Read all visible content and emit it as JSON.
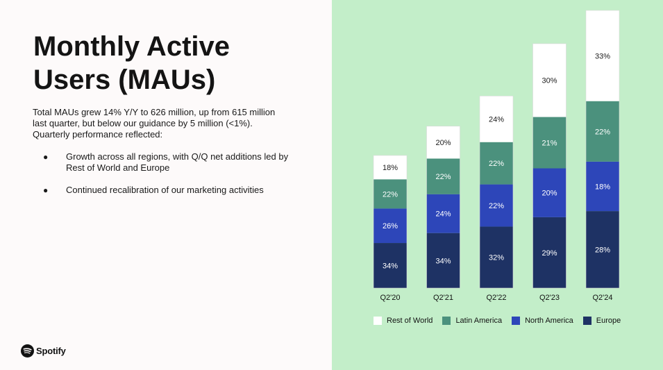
{
  "title": {
    "line1": "Monthly Active",
    "line2": "Users (MAUs)"
  },
  "intro": "Total MAUs grew 14% Y/Y to 626 million, up from 615 million last quarter, but below our guidance by 5 million (<1%). Quarterly performance reflected:",
  "bullets": [
    "Growth across all regions, with Q/Q net additions led by Rest of World and Europe",
    "Continued recalibration of our marketing activities"
  ],
  "bullet_glyph": "●",
  "logo": {
    "text": "Spotify"
  },
  "colors": {
    "background": "#fdfafa",
    "panel": "#c3eec9",
    "rest_of_world": "#ffffff",
    "latin_america": "#4b917d",
    "north_america": "#2d46b9",
    "europe": "#1e3264",
    "spotify_logo": "#121212"
  },
  "chart_data": {
    "type": "bar",
    "stacked": true,
    "categories": [
      "Q2'20",
      "Q2'21",
      "Q2'22",
      "Q2'23",
      "Q2'24"
    ],
    "totals_millions": [
      299,
      365,
      433,
      551,
      626
    ],
    "series": [
      {
        "name": "Europe",
        "color": "#1e3264",
        "values": [
          34,
          34,
          32,
          29,
          28
        ],
        "labels": [
          "34%",
          "34%",
          "32%",
          "29%",
          "28%"
        ]
      },
      {
        "name": "North America",
        "color": "#2d46b9",
        "values": [
          26,
          24,
          22,
          20,
          18
        ],
        "labels": [
          "26%",
          "24%",
          "22%",
          "20%",
          "18%"
        ]
      },
      {
        "name": "Latin America",
        "color": "#4b917d",
        "values": [
          22,
          22,
          22,
          21,
          22
        ],
        "labels": [
          "22%",
          "22%",
          "22%",
          "21%",
          "22%"
        ]
      },
      {
        "name": "Rest of World",
        "color": "#ffffff",
        "values": [
          18,
          20,
          24,
          30,
          33
        ],
        "labels": [
          "18%",
          "20%",
          "24%",
          "30%",
          "33%"
        ]
      }
    ],
    "legend": [
      {
        "name": "Rest of World",
        "color": "#ffffff"
      },
      {
        "name": "Latin America",
        "color": "#4b917d"
      },
      {
        "name": "North America",
        "color": "#2d46b9"
      },
      {
        "name": "Europe",
        "color": "#1e3264"
      }
    ],
    "legend_position": "bottom",
    "grid": false,
    "title": "",
    "xlabel": "",
    "ylabel": ""
  }
}
